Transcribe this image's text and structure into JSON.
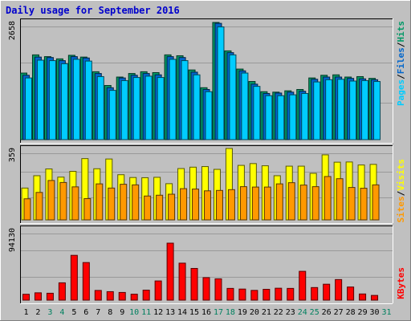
{
  "chart_data": [
    {
      "type": "bar",
      "title": "Daily usage for September 2016",
      "x": [
        "1",
        "2",
        "3",
        "4",
        "5",
        "6",
        "7",
        "8",
        "9",
        "10",
        "11",
        "12",
        "13",
        "14",
        "15",
        "16",
        "17",
        "18",
        "19",
        "20",
        "21",
        "22",
        "23",
        "24",
        "25",
        "26",
        "27",
        "28",
        "29",
        "30",
        "31"
      ],
      "weekend_days": [
        "3",
        "4",
        "10",
        "11",
        "17",
        "18",
        "24",
        "25",
        "31"
      ],
      "panels": [
        {
          "name": "traffic",
          "y_tick_label": "2658",
          "ylim": [
            0,
            2658
          ],
          "series": [
            {
              "name": "Hits",
              "color": "#009966",
              "values": [
                1500,
                1910,
                1870,
                1820,
                1900,
                1860,
                1530,
                1220,
                1410,
                1490,
                1530,
                1510,
                1910,
                1890,
                1570,
                1170,
                2640,
                2000,
                1590,
                1310,
                1080,
                1070,
                1100,
                1130,
                1390,
                1450,
                1460,
                1410,
                1420,
                1380,
                0
              ]
            },
            {
              "name": "Files",
              "color": "#0066cc",
              "values": [
                1450,
                1860,
                1850,
                1780,
                1870,
                1840,
                1490,
                1170,
                1390,
                1450,
                1490,
                1460,
                1870,
                1850,
                1520,
                1130,
                2620,
                1960,
                1550,
                1250,
                1040,
                1050,
                1070,
                1090,
                1360,
                1410,
                1410,
                1380,
                1370,
                1350,
                0
              ]
            },
            {
              "name": "Pages",
              "color": "#00ccff",
              "values": [
                1390,
                1790,
                1780,
                1710,
                1810,
                1770,
                1420,
                1110,
                1330,
                1400,
                1430,
                1400,
                1810,
                1780,
                1460,
                1080,
                2540,
                1910,
                1500,
                1200,
                990,
                990,
                1010,
                1040,
                1300,
                1350,
                1360,
                1320,
                1330,
                1310,
                0
              ]
            }
          ]
        },
        {
          "name": "visits",
          "y_tick_label": "359",
          "ylim": [
            0,
            359
          ],
          "series": [
            {
              "name": "Visits",
              "color": "#ffff00",
              "values": [
                160,
                222,
                256,
                215,
                244,
                308,
                257,
                306,
                227,
                213,
                212,
                214,
                182,
                258,
                265,
                268,
                254,
                359,
                274,
                283,
                272,
                222,
                270,
                270,
                234,
                327,
                290,
                291,
                276,
                279,
                0
              ]
            },
            {
              "name": "Sites",
              "color": "#ff9900",
              "values": [
                106,
                138,
                198,
                188,
                166,
                107,
                181,
                160,
                179,
                176,
                120,
                124,
                129,
                157,
                155,
                146,
                148,
                152,
                167,
                165,
                165,
                181,
                187,
                175,
                167,
                218,
                207,
                163,
                159,
                176,
                0
              ]
            }
          ]
        },
        {
          "name": "kbytes",
          "y_tick_label": "94130",
          "ylim": [
            0,
            118000
          ],
          "series": [
            {
              "name": "KBytes",
              "color": "#ff0000",
              "values": [
                9700,
                12100,
                11400,
                28600,
                74000,
                62100,
                16000,
                14000,
                12700,
                9800,
                16500,
                31700,
                94130,
                61100,
                52400,
                37200,
                35200,
                19400,
                18300,
                16100,
                17900,
                19700,
                19400,
                47600,
                20800,
                26300,
                34000,
                21700,
                10200,
                7800,
                0
              ]
            }
          ]
        }
      ]
    }
  ]
}
